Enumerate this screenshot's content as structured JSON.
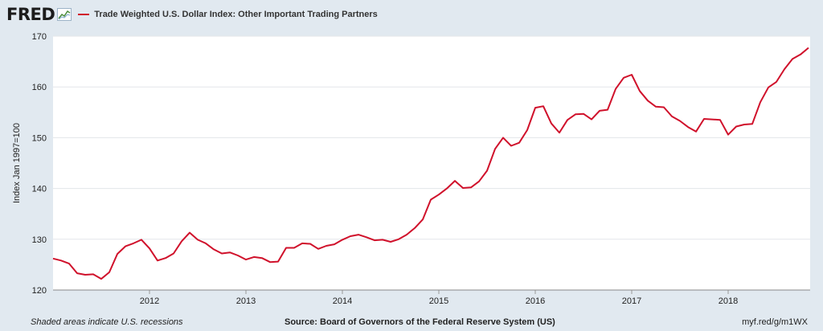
{
  "header": {
    "logo": "FRED",
    "logo_icon": "fred-chart-icon"
  },
  "colors": {
    "series": "#d0112b",
    "background": "#e1e9f0",
    "plot": "#ffffff",
    "grid": "#e3e6ea"
  },
  "chart_data": {
    "type": "line",
    "title": "",
    "xlabel": "",
    "ylabel": "Index Jan 1997=100",
    "xlim": [
      2011.0,
      2018.85
    ],
    "ylim": [
      120,
      170
    ],
    "yticks": [
      120,
      130,
      140,
      150,
      160,
      170
    ],
    "xticks": [
      "2012",
      "2013",
      "2014",
      "2015",
      "2016",
      "2017",
      "2018"
    ],
    "grid": "horizontal",
    "legend": "top-left",
    "series": [
      {
        "name": "Trade Weighted U.S. Dollar Index: Other Important Trading Partners",
        "x": [
          "2011-01",
          "2011-02",
          "2011-03",
          "2011-04",
          "2011-05",
          "2011-06",
          "2011-07",
          "2011-08",
          "2011-09",
          "2011-10",
          "2011-11",
          "2011-12",
          "2012-01",
          "2012-02",
          "2012-03",
          "2012-04",
          "2012-05",
          "2012-06",
          "2012-07",
          "2012-08",
          "2012-09",
          "2012-10",
          "2012-11",
          "2012-12",
          "2013-01",
          "2013-02",
          "2013-03",
          "2013-04",
          "2013-05",
          "2013-06",
          "2013-07",
          "2013-08",
          "2013-09",
          "2013-10",
          "2013-11",
          "2013-12",
          "2014-01",
          "2014-02",
          "2014-03",
          "2014-04",
          "2014-05",
          "2014-06",
          "2014-07",
          "2014-08",
          "2014-09",
          "2014-10",
          "2014-11",
          "2014-12",
          "2015-01",
          "2015-02",
          "2015-03",
          "2015-04",
          "2015-05",
          "2015-06",
          "2015-07",
          "2015-08",
          "2015-09",
          "2015-10",
          "2015-11",
          "2015-12",
          "2016-01",
          "2016-02",
          "2016-03",
          "2016-04",
          "2016-05",
          "2016-06",
          "2016-07",
          "2016-08",
          "2016-09",
          "2016-10",
          "2016-11",
          "2016-12",
          "2017-01",
          "2017-02",
          "2017-03",
          "2017-04",
          "2017-05",
          "2017-06",
          "2017-07",
          "2017-08",
          "2017-09",
          "2017-10",
          "2017-11",
          "2017-12",
          "2018-01",
          "2018-02",
          "2018-03",
          "2018-04",
          "2018-05",
          "2018-06",
          "2018-07",
          "2018-08",
          "2018-09",
          "2018-10",
          "2018-11"
        ],
        "values": [
          126.2,
          125.8,
          125.2,
          123.3,
          123.0,
          123.1,
          122.2,
          123.5,
          127.1,
          128.6,
          129.2,
          129.9,
          128.2,
          125.8,
          126.3,
          127.2,
          129.6,
          131.3,
          129.9,
          129.2,
          128.0,
          127.2,
          127.4,
          126.8,
          126.0,
          126.5,
          126.3,
          125.5,
          125.6,
          128.3,
          128.3,
          129.2,
          129.1,
          128.1,
          128.7,
          129.0,
          129.9,
          130.6,
          130.9,
          130.4,
          129.8,
          129.9,
          129.5,
          130.0,
          130.9,
          132.2,
          133.9,
          137.8,
          138.8,
          140.0,
          141.5,
          140.1,
          140.2,
          141.4,
          143.5,
          147.8,
          150.0,
          148.4,
          149.0,
          151.5,
          155.9,
          156.2,
          152.8,
          151.0,
          153.5,
          154.6,
          154.7,
          153.6,
          155.3,
          155.5,
          159.6,
          161.8,
          162.4,
          159.2,
          157.3,
          156.1,
          156.0,
          154.2,
          153.3,
          152.1,
          151.2,
          153.7,
          153.6,
          153.5,
          150.6,
          152.2,
          152.6,
          152.7,
          157.0,
          159.9,
          161.0,
          163.5,
          165.5,
          166.4,
          167.7
        ]
      }
    ]
  },
  "footer": {
    "note": "Shaded areas indicate U.S. recessions",
    "source": "Source: Board of Governors of the Federal Reserve System (US)",
    "url": "myf.red/g/m1WX"
  }
}
